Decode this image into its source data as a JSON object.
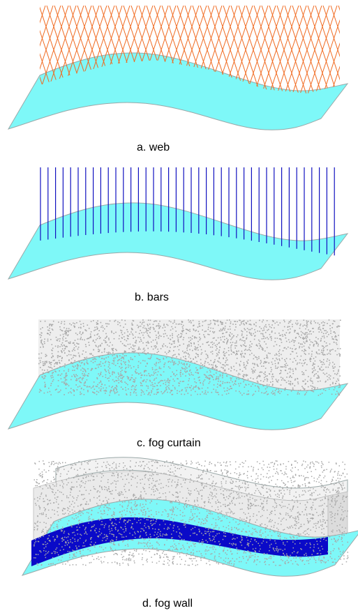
{
  "panels": [
    {
      "id": "web",
      "caption": "a. web"
    },
    {
      "id": "bars",
      "caption": "b.  bars"
    },
    {
      "id": "fog-curtain",
      "caption": "c. fog curtain"
    },
    {
      "id": "fog-wall",
      "caption": "d. fog wall"
    }
  ],
  "colors": {
    "surface_fill": "#7ef8f8",
    "surface_edge": "#9aa8a8",
    "web_lines": "#f06a20",
    "bars": "#1010c0",
    "fog": "#a8a8a8",
    "fog_wall_band": "#0a0ac8"
  }
}
